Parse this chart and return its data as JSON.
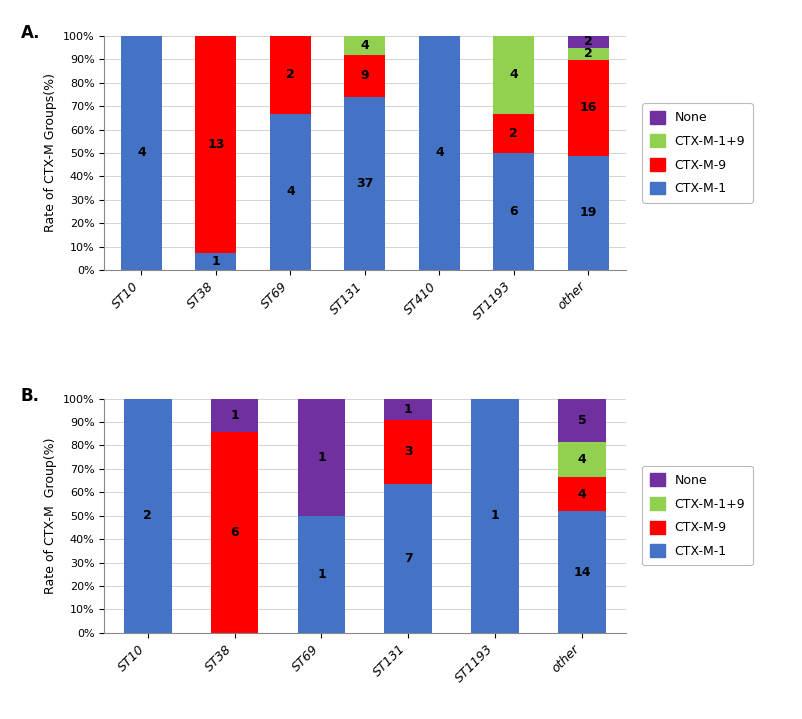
{
  "chart_A": {
    "categories": [
      "ST10",
      "ST38",
      "ST69",
      "ST131",
      "ST410",
      "ST1193",
      "other"
    ],
    "CTX_M_1": [
      4,
      1,
      4,
      37,
      4,
      6,
      19
    ],
    "CTX_M_9": [
      0,
      13,
      2,
      9,
      0,
      2,
      16
    ],
    "CTX_M_1_9": [
      0,
      0,
      0,
      4,
      0,
      4,
      2
    ],
    "None": [
      0,
      0,
      0,
      0,
      0,
      0,
      2
    ],
    "ylabel": "Rate of CTX-M Groups(%)",
    "label": "A."
  },
  "chart_B": {
    "categories": [
      "ST10",
      "ST38",
      "ST69",
      "ST131",
      "ST1193",
      "other"
    ],
    "CTX_M_1": [
      2,
      0,
      1,
      7,
      1,
      14
    ],
    "CTX_M_9": [
      0,
      6,
      0,
      3,
      0,
      4
    ],
    "CTX_M_1_9": [
      0,
      0,
      0,
      0,
      0,
      4
    ],
    "None": [
      0,
      1,
      1,
      1,
      0,
      5
    ],
    "ylabel": "Rate of CTX-M  Group(%)",
    "label": "B."
  },
  "colors": {
    "CTX_M_1": "#4472C4",
    "CTX_M_9": "#FF0000",
    "CTX_M_1_9": "#92D050",
    "None": "#7030A0"
  },
  "background_color": "#FFFFFF",
  "bar_width": 0.55,
  "figsize": [
    8.02,
    7.19
  ],
  "dpi": 100
}
